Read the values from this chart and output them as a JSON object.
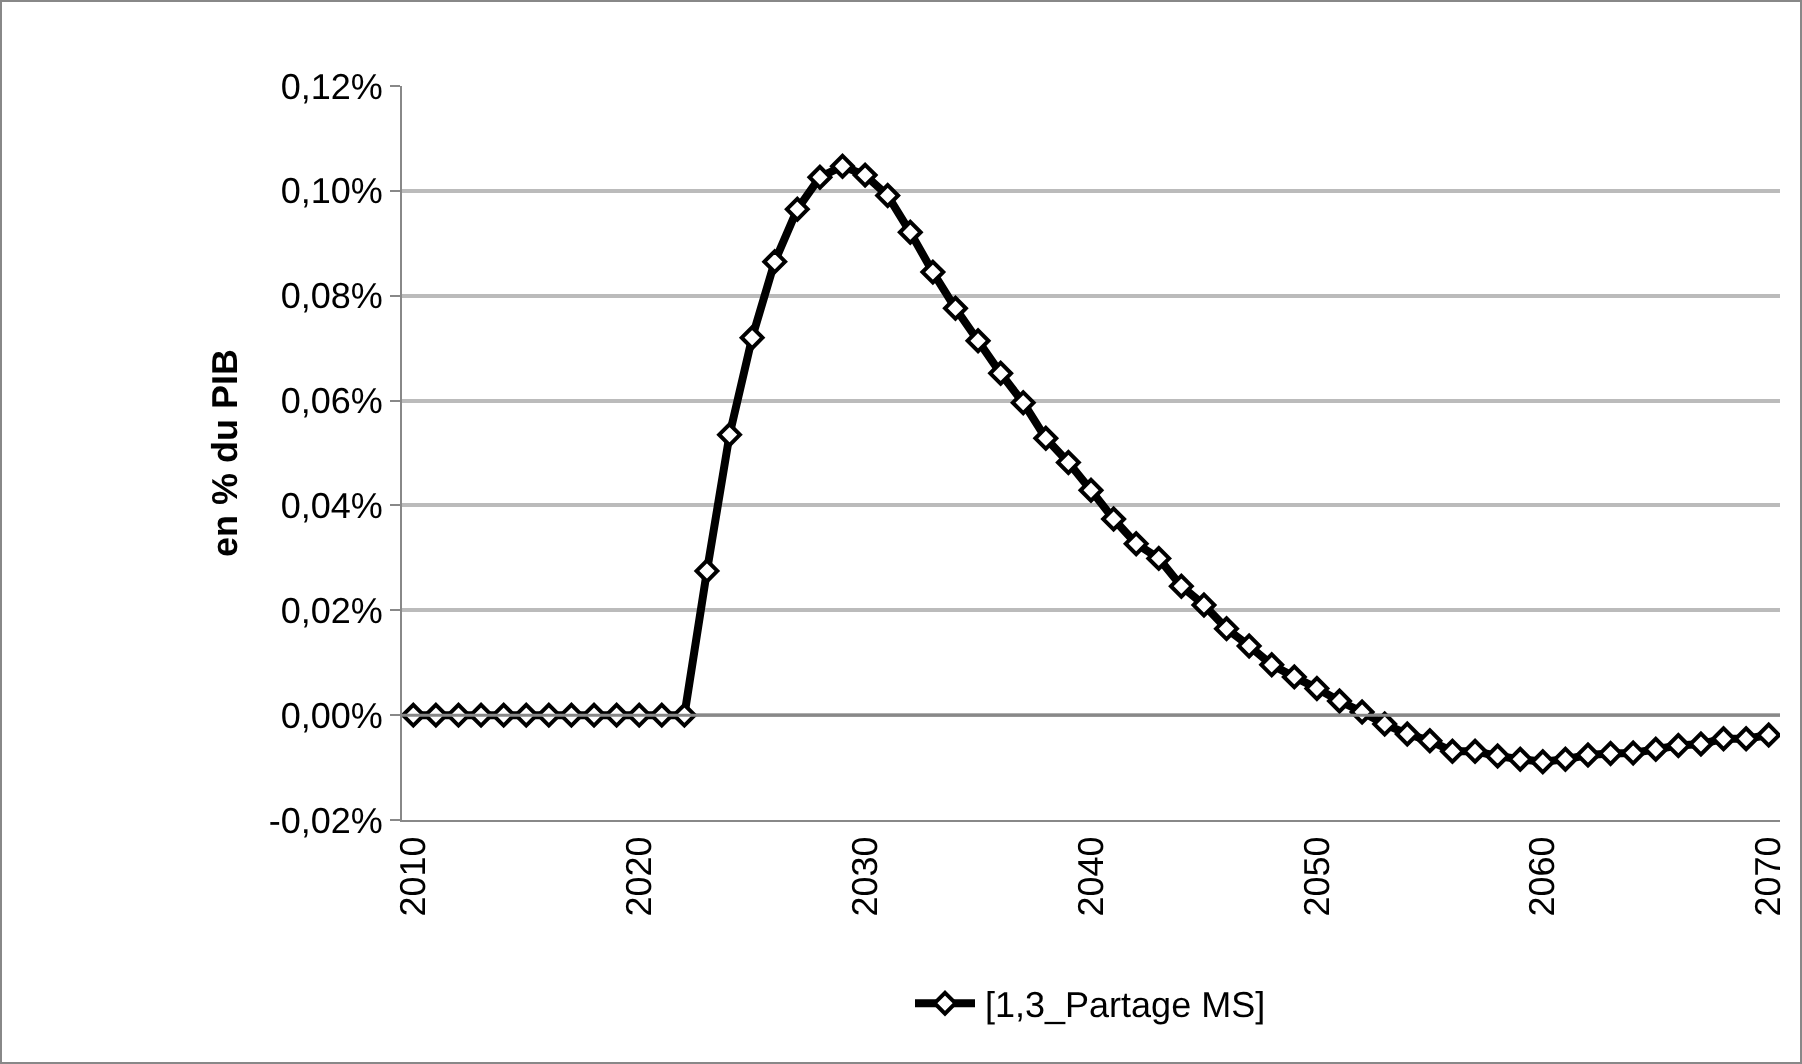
{
  "chart_data": {
    "type": "line",
    "ylabel": "en % du PIB",
    "x": [
      2010,
      2011,
      2012,
      2013,
      2014,
      2015,
      2016,
      2017,
      2018,
      2019,
      2020,
      2021,
      2022,
      2023,
      2024,
      2025,
      2026,
      2027,
      2028,
      2029,
      2030,
      2031,
      2032,
      2033,
      2034,
      2035,
      2036,
      2037,
      2038,
      2039,
      2040,
      2041,
      2042,
      2043,
      2044,
      2045,
      2046,
      2047,
      2048,
      2049,
      2050,
      2051,
      2052,
      2053,
      2054,
      2055,
      2056,
      2057,
      2058,
      2059,
      2060,
      2061,
      2062,
      2063,
      2064,
      2065,
      2066,
      2067,
      2068,
      2069,
      2070
    ],
    "series": [
      {
        "name": "[1,3_Partage MS]",
        "color": "#000000",
        "values": [
          0,
          0,
          0,
          0,
          0,
          0,
          0,
          0,
          0,
          0,
          0,
          0,
          0,
          0.0275,
          0.0535,
          0.072,
          0.0865,
          0.0965,
          0.1026,
          0.1047,
          0.103,
          0.0991,
          0.0921,
          0.0845,
          0.0776,
          0.0714,
          0.0652,
          0.0596,
          0.0528,
          0.0482,
          0.0429,
          0.0374,
          0.0327,
          0.0299,
          0.0246,
          0.021,
          0.0165,
          0.0132,
          0.0096,
          0.0073,
          0.0051,
          0.0027,
          0.0006,
          -0.0017,
          -0.0036,
          -0.0049,
          -0.0069,
          -0.0069,
          -0.0078,
          -0.0084,
          -0.0089,
          -0.0084,
          -0.0076,
          -0.0073,
          -0.0072,
          -0.0065,
          -0.0058,
          -0.0055,
          -0.0045,
          -0.0045,
          -0.0038
        ]
      }
    ],
    "xlim": [
      2009.5,
      2070.5
    ],
    "xticks": [
      2010,
      2020,
      2030,
      2040,
      2050,
      2060,
      2070
    ],
    "ylim": [
      -0.02,
      0.12
    ],
    "yticks": [
      {
        "value": -0.02,
        "label": "-0,02%"
      },
      {
        "value": 0,
        "label": "0,00%"
      },
      {
        "value": 0.02,
        "label": "0,02%"
      },
      {
        "value": 0.04,
        "label": "0,04%"
      },
      {
        "value": 0.06,
        "label": "0,06%"
      },
      {
        "value": 0.08,
        "label": "0,08%"
      },
      {
        "value": 0.1,
        "label": "0,10%"
      },
      {
        "value": 0.12,
        "label": "0,12%"
      }
    ],
    "grid": "y",
    "legend": "bottom",
    "marker": "diamond",
    "line_style": "solid"
  }
}
